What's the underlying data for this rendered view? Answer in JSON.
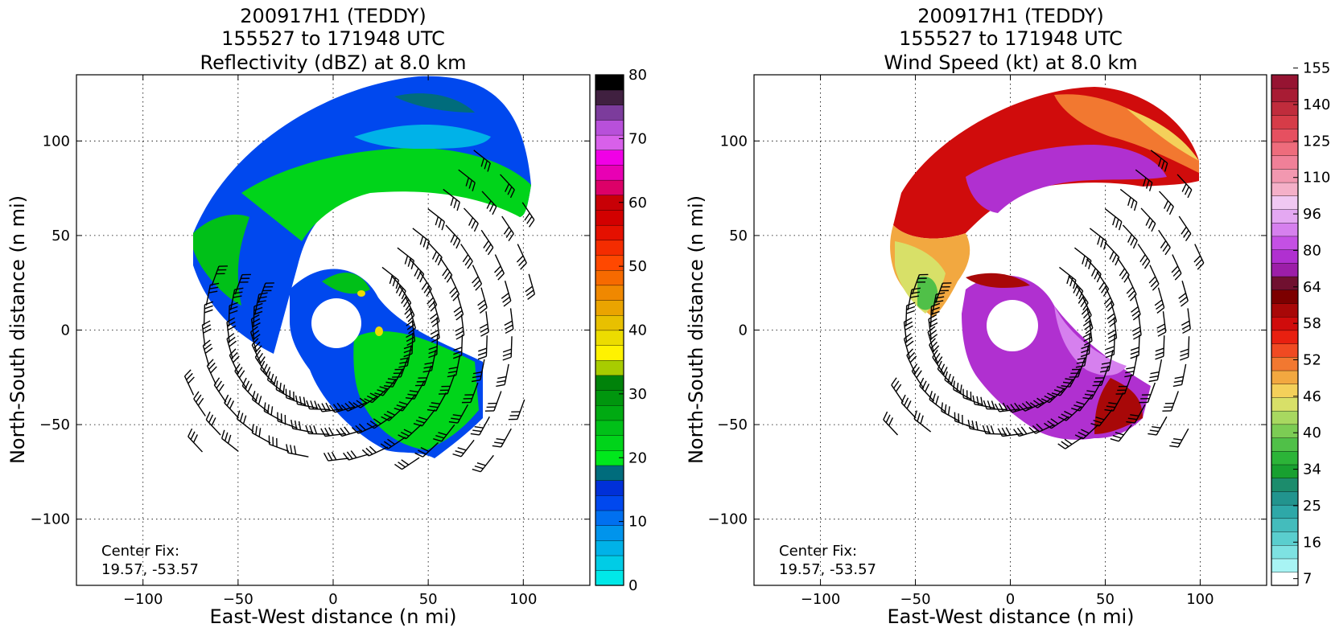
{
  "figure": {
    "colors": {
      "dbz_scale": [
        "#00e8e8",
        "#00cce6",
        "#00b2e8",
        "#0094ec",
        "#0070f0",
        "#0048ee",
        "#0030d8",
        "#006c7c",
        "#00e81c",
        "#00d41a",
        "#00c018",
        "#00aa12",
        "#00960e",
        "#00820a",
        "#a8cc00",
        "#fff200",
        "#ecdc00",
        "#e8c000",
        "#eaa400",
        "#f08800",
        "#f66a00",
        "#ff4800",
        "#f42c00",
        "#e41000",
        "#d20000",
        "#c80006",
        "#dc0068",
        "#e800b4",
        "#f000e6",
        "#d860ea",
        "#b850da",
        "#7c3c9c",
        "#402040",
        "#000000"
      ],
      "wind_scale": [
        "#ffffff",
        "#a8f4f4",
        "#7ee2e2",
        "#5acece",
        "#44bcbc",
        "#2ea8a8",
        "#22948e",
        "#1c8c6c",
        "#18a030",
        "#2cb438",
        "#50c048",
        "#7ccc54",
        "#a8d860",
        "#d8e068",
        "#f4d05a",
        "#f2a840",
        "#f27830",
        "#f04a22",
        "#e82010",
        "#d00c0c",
        "#a80808",
        "#7c0000",
        "#701030",
        "#9c1ea8",
        "#b030d0",
        "#c450e4",
        "#d680ee",
        "#e4a8f2",
        "#f0c8f2",
        "#f4b0c8",
        "#f298b0",
        "#f08098",
        "#ee6c7c",
        "#e65060",
        "#d63c48",
        "#c02c3c",
        "#a81c34",
        "#961432"
      ]
    },
    "panels": [
      {
        "title_line1": "200917H1 (TEDDY)",
        "title_line2": "155527 to 171948 UTC",
        "title_line3": "Reflectivity (dBZ) at 8.0 km",
        "center_fix_label": "Center Fix:",
        "center_fix_value": "19.57, -53.57"
      },
      {
        "title_line1": "200917H1 (TEDDY)",
        "title_line2": "155527 to 171948 UTC",
        "title_line3": "Wind Speed (kt) at 8.0 km",
        "center_fix_label": "Center Fix:",
        "center_fix_value": "19.57, -53.57"
      }
    ]
  },
  "chart_data": [
    {
      "type": "heatmap",
      "title": "200917H1 (TEDDY) 155527 to 171948 UTC Reflectivity (dBZ) at 8.0 km",
      "xlabel": "East-West distance (n mi)",
      "ylabel": "North-South distance (n mi)",
      "xlim": [
        -135,
        135
      ],
      "ylim": [
        -135,
        135
      ],
      "xticks": [
        -100,
        -50,
        0,
        50,
        100
      ],
      "yticks": [
        -100,
        -50,
        0,
        50,
        100
      ],
      "xtick_labels": [
        "−100",
        "−50",
        "0",
        "50",
        "100"
      ],
      "ytick_labels": [
        "−100",
        "−50",
        "0",
        "50",
        "100"
      ],
      "grid": true,
      "colorbar_range": [
        0,
        80
      ],
      "colorbar_ticks": [
        "0",
        "10",
        "20",
        "30",
        "40",
        "50",
        "60",
        "70",
        "80"
      ],
      "annotation": "Center Fix: 19.57, -53.57"
    },
    {
      "type": "heatmap",
      "title": "200917H1 (TEDDY) 155527 to 171948 UTC Wind Speed (kt) at 8.0 km",
      "xlabel": "East-West distance (n mi)",
      "ylabel": "North-South distance (n mi)",
      "xlim": [
        -135,
        135
      ],
      "ylim": [
        -135,
        135
      ],
      "xticks": [
        -100,
        -50,
        0,
        50,
        100
      ],
      "yticks": [
        -100,
        -50,
        0,
        50,
        100
      ],
      "xtick_labels": [
        "−100",
        "−50",
        "0",
        "50",
        "100"
      ],
      "ytick_labels": [
        "−100",
        "−50",
        "0",
        "50",
        "100"
      ],
      "grid": true,
      "colorbar_ticks": [
        "7",
        "16",
        "25",
        "34",
        "40",
        "46",
        "52",
        "58",
        "64",
        "80",
        "96",
        "110",
        "125",
        "140",
        "155"
      ],
      "annotation": "Center Fix: 19.57, -53.57"
    }
  ]
}
